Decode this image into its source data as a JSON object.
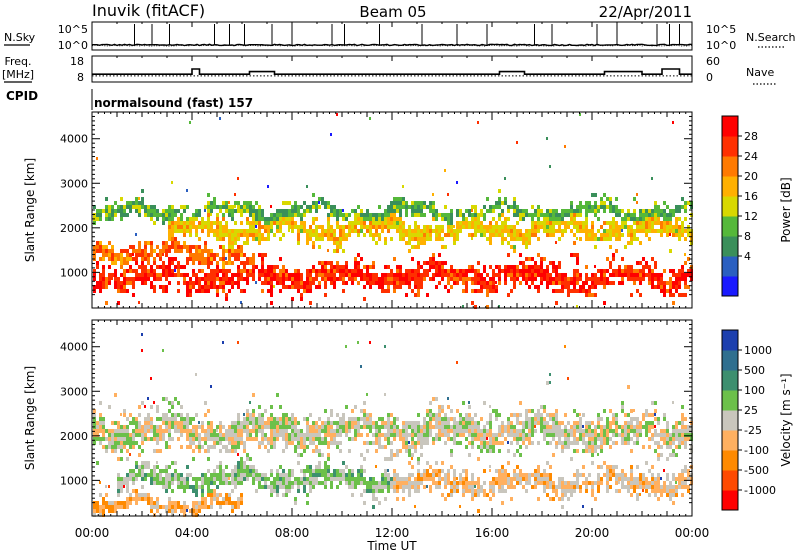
{
  "header": {
    "station": "Inuvik (fitACF)",
    "beam": "Beam 05",
    "date": "22/Apr/2011"
  },
  "labels": {
    "nsky": "N.Sky",
    "freq": "Freq.",
    "mhz": "[MHz]",
    "cpid": "CPID",
    "nsearch": "N.Search",
    "nave": "Nave",
    "cpid_value": "normalsound (fast) 157",
    "time_axis": "Time UT",
    "range_axis": "Slant Range [km]",
    "power_bar": "Power [dB]",
    "velocity_bar": "Velocity [m s⁻¹]"
  },
  "noise_ticks": [
    "10^5",
    "10^0"
  ],
  "freq_ticks": [
    "18",
    "8"
  ],
  "nave_ticks": [
    "60",
    "0"
  ],
  "time_ticks": [
    "00:00",
    "04:00",
    "08:00",
    "12:00",
    "16:00",
    "20:00",
    "00:00"
  ],
  "range_ticks": [
    "4000",
    "3000",
    "2000",
    "1000"
  ],
  "power_scale": {
    "labels": [
      "28",
      "24",
      "20",
      "16",
      "12",
      "8",
      "4"
    ],
    "colors": [
      "#1a1aff",
      "#2a5fc0",
      "#3a8f5a",
      "#55b83a",
      "#d8d800",
      "#ffb000",
      "#ff7a00",
      "#ff3000",
      "#ff0000"
    ]
  },
  "velocity_scale": {
    "labels": [
      "1000",
      "500",
      "100",
      "25",
      "-25",
      "-100",
      "-500",
      "-1000"
    ],
    "colors": [
      "#1c3fae",
      "#2f6f8f",
      "#3d8f6f",
      "#6cc04a",
      "#c9c6bd",
      "#ffb060",
      "#ff8a00",
      "#ff4a00",
      "#ff0000"
    ]
  },
  "chart_data": [
    {
      "type": "line",
      "name": "noise",
      "x_range_hours": [
        0,
        24
      ],
      "sky_series": "N.Sky",
      "search_series": "N.Search",
      "sky_baseline_log": 1.0,
      "spikes_hours": [
        1.7,
        2.4,
        3.1,
        4.9,
        5.5,
        6.1,
        7.2,
        8.0,
        9.6,
        10.1,
        11.5,
        13.2,
        14.6,
        15.8,
        17.7,
        18.4,
        20.2,
        21.0,
        22.6,
        23.1,
        23.5
      ]
    },
    {
      "type": "line",
      "name": "frequency-nave",
      "x_range_hours": [
        0,
        24
      ],
      "freq_mhz": [
        [
          0,
          11
        ],
        [
          4.0,
          11
        ],
        [
          4.0,
          13
        ],
        [
          4.3,
          13
        ],
        [
          4.3,
          11
        ],
        [
          6.3,
          11
        ],
        [
          6.3,
          12
        ],
        [
          7.3,
          12
        ],
        [
          7.3,
          11
        ],
        [
          16.3,
          11
        ],
        [
          16.3,
          12
        ],
        [
          17.3,
          12
        ],
        [
          17.3,
          11
        ],
        [
          20.5,
          11
        ],
        [
          20.5,
          12
        ],
        [
          22.0,
          12
        ],
        [
          22.0,
          11
        ],
        [
          22.8,
          11
        ],
        [
          22.8,
          13
        ],
        [
          23.5,
          13
        ],
        [
          23.5,
          11
        ],
        [
          24,
          11
        ]
      ],
      "nave_dotted": 14
    },
    {
      "type": "heatmap",
      "name": "power",
      "x": "Time UT (hours)",
      "y": "Slant Range [km]",
      "x_range": [
        0,
        24
      ],
      "y_range": [
        200,
        4600
      ],
      "z": "Power [dB]",
      "z_range": [
        0,
        30
      ],
      "echo_bands": [
        {
          "t0": 0,
          "t1": 24,
          "r_center": 950,
          "r_width": 350,
          "z": 26
        },
        {
          "t0": 0,
          "t1": 6,
          "r_center": 1500,
          "r_width": 250,
          "z": 22
        },
        {
          "t0": 3,
          "t1": 24,
          "r_center": 2000,
          "r_width": 300,
          "z": 17
        },
        {
          "t0": 0,
          "t1": 24,
          "r_center": 2400,
          "r_width": 200,
          "z": 11
        }
      ]
    },
    {
      "type": "heatmap",
      "name": "velocity",
      "x": "Time UT (hours)",
      "y": "Slant Range [km]",
      "x_range": [
        0,
        24
      ],
      "y_range": [
        200,
        4600
      ],
      "z": "Velocity [m/s]",
      "z_range": [
        -1000,
        1000
      ],
      "echo_bands": [
        {
          "t0": 0,
          "t1": 24,
          "r_center": 2150,
          "r_width": 450,
          "z": 0
        },
        {
          "t0": 1,
          "t1": 12,
          "r_center": 1050,
          "r_width": 300,
          "z": 150
        },
        {
          "t0": 12,
          "t1": 24,
          "r_center": 1000,
          "r_width": 300,
          "z": -150
        },
        {
          "t0": 0,
          "t1": 6,
          "r_center": 500,
          "r_width": 200,
          "z": -250
        }
      ]
    }
  ]
}
